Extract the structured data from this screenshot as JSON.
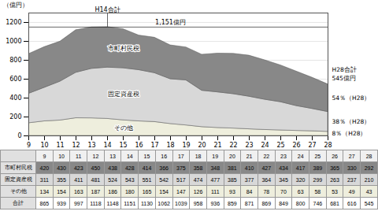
{
  "chart_data": {
    "type": "area",
    "stacked": true,
    "x": [
      9,
      10,
      11,
      12,
      13,
      14,
      15,
      16,
      17,
      18,
      19,
      20,
      21,
      22,
      23,
      24,
      25,
      26,
      27,
      28
    ],
    "xlim": [
      9,
      28
    ],
    "xticks": [
      9,
      10,
      11,
      12,
      13,
      14,
      15,
      16,
      17,
      18,
      19,
      20,
      21,
      22,
      23,
      24,
      25,
      26,
      27,
      28
    ],
    "ylim": [
      0,
      1300
    ],
    "yticks": [
      0,
      200,
      400,
      600,
      800,
      1000,
      1200
    ],
    "ylabel": "（億円）",
    "grid": true,
    "series": [
      {
        "name": "市町村民税",
        "color": "#888888",
        "values": [
          420,
          430,
          423,
          450,
          438,
          428,
          414,
          366,
          375,
          358,
          348,
          381,
          410,
          427,
          434,
          417,
          389,
          365,
          330,
          292
        ],
        "share": 54,
        "share_label": "54％（H28）"
      },
      {
        "name": "固定資産税",
        "color": "#d8d8d8",
        "values": [
          311,
          355,
          411,
          481,
          524,
          543,
          551,
          542,
          517,
          474,
          477,
          385,
          377,
          364,
          345,
          320,
          299,
          263,
          237,
          210
        ],
        "share": 38,
        "share_label": "38％（H28）"
      },
      {
        "name": "その他",
        "color": "#eeeedd",
        "values": [
          134,
          154,
          163,
          187,
          186,
          180,
          165,
          154,
          147,
          126,
          111,
          93,
          84,
          78,
          70,
          63,
          58,
          53,
          49,
          43
        ],
        "share": 8,
        "share_label": "8％（H28）"
      }
    ],
    "peak": {
      "x": 14,
      "y": 1151,
      "label": "H14合計",
      "value_label": "1,151億円"
    },
    "end_total": {
      "label": "H28合計",
      "value": 545,
      "value_label": "545億円"
    },
    "table": {
      "total_label": "合計",
      "totals": [
        865,
        939,
        997,
        1118,
        1148,
        1151,
        1130,
        1062,
        1039,
        958,
        936,
        859,
        871,
        869,
        849,
        800,
        746,
        681,
        616,
        545
      ]
    }
  }
}
